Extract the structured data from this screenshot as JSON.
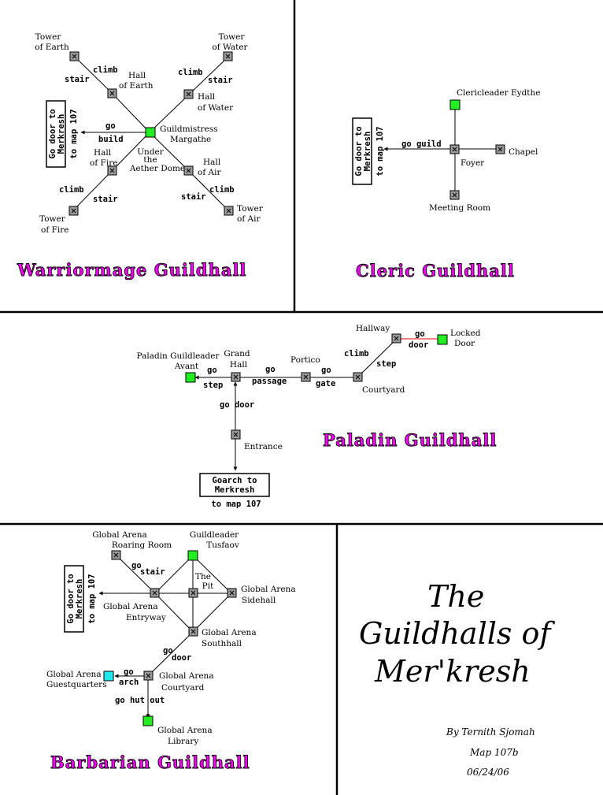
{
  "sections": {
    "warriormage": {
      "title": "Warriormage Guildhall",
      "exit_box": [
        "Go door to",
        "Merkresh",
        "to map 107"
      ],
      "rooms": {
        "tower_earth": [
          "Tower",
          "of Earth"
        ],
        "hall_earth": [
          "Hall",
          "of Earth"
        ],
        "tower_water": [
          "Tower",
          "of Water"
        ],
        "hall_water": [
          "Hall",
          "of Water"
        ],
        "guildmistress": [
          "Guildmistress",
          "Margathe"
        ],
        "under_dome": [
          "Under",
          "the",
          "Aether Dome"
        ],
        "hall_fire": [
          "Hall",
          "of Fire"
        ],
        "tower_fire": [
          "Tower",
          "of Fire"
        ],
        "hall_air": [
          "Hall",
          "of Air"
        ],
        "tower_air": [
          "Tower",
          "of Air"
        ]
      },
      "commands": {
        "climb": "climb",
        "stair": "stair",
        "go": "go",
        "build": "build"
      }
    },
    "cleric": {
      "title": "Cleric Guildhall",
      "exit_box": [
        "Go door to",
        "Merkresh",
        "to map 107"
      ],
      "rooms": {
        "leader": "Clericleader Eydthe",
        "chapel": "Chapel",
        "foyer": "Foyer",
        "meeting": "Meeting Room"
      },
      "commands": {
        "go_guild": "go guild"
      }
    },
    "paladin": {
      "title": "Paladin Guildhall",
      "rooms": {
        "leader": [
          "Paladin Guildleader",
          "Avant"
        ],
        "grand_hall": [
          "Grand",
          "Hall"
        ],
        "portico": "Portico",
        "hallway": "Hallway",
        "locked_door": [
          "Locked",
          "Door"
        ],
        "courtyard": "Courtyard",
        "entrance": "Entrance"
      },
      "commands": {
        "go": "go",
        "step": "step",
        "passage": "passage",
        "gate": "gate",
        "climb": "climb",
        "door": "door",
        "go_door": "go door"
      },
      "exit_box": [
        "Goarch to",
        "Merkresh"
      ],
      "exit_box_sub": "to map 107"
    },
    "barbarian": {
      "title": "Barbarian Guildhall",
      "exit_box": [
        "Go door to",
        "Merkresh",
        "to map 107"
      ],
      "rooms": {
        "roaring_room": [
          "Global Arena",
          "Roaring Room"
        ],
        "guildleader": [
          "Guildleader",
          "Tusfaov"
        ],
        "the_pit": [
          "The",
          "Pit"
        ],
        "sidehall": [
          "Global Arena",
          "Sidehall"
        ],
        "entryway": [
          "Global Arena",
          "Entryway"
        ],
        "southhall": [
          "Global Arena",
          "Southhall"
        ],
        "guestquarters": [
          "Global Arena",
          "Guestquarters"
        ],
        "courtyard": [
          "Global Arena",
          "Courtyard"
        ],
        "library": [
          "Global Arena",
          "Library"
        ]
      },
      "commands": {
        "go": "go",
        "stair": "stair",
        "door": "door",
        "arch": "arch",
        "go_hut_out": "go hut out"
      }
    },
    "title_panel": {
      "title": [
        "The",
        "Guildhalls of",
        "Mer'kresh"
      ],
      "author": "By Ternith Sjomah",
      "map": "Map 107b",
      "date": "06/24/06"
    }
  },
  "colors": {
    "guild_title": "#ff00ff",
    "room_fill": "#9a9a9a",
    "leader_room": "#22ee22",
    "guest_room": "#22e8ee",
    "locked_link": "#e00000"
  }
}
